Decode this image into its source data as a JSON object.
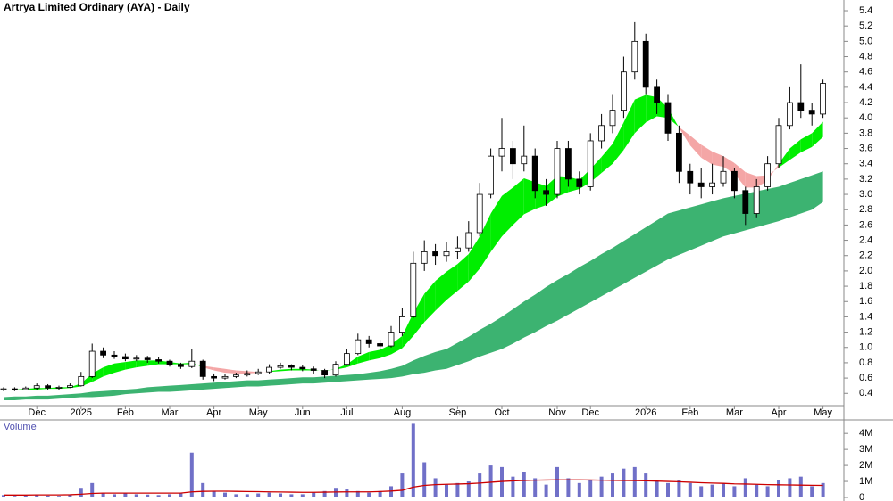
{
  "chart_data": {
    "type": "candlestick",
    "title": "Artrya Limited Ordinary (AYA) - Daily",
    "categories": [
      null,
      null,
      null,
      "Dec",
      null,
      null,
      null,
      "2025",
      null,
      null,
      null,
      "Feb",
      null,
      null,
      null,
      "Mar",
      null,
      null,
      null,
      "Apr",
      null,
      null,
      null,
      "May",
      null,
      null,
      null,
      "Jun",
      null,
      null,
      null,
      "Jul",
      null,
      null,
      null,
      null,
      "Aug",
      null,
      null,
      null,
      null,
      "Sep",
      null,
      null,
      null,
      "Oct",
      null,
      null,
      null,
      null,
      "Nov",
      null,
      null,
      "Dec",
      null,
      null,
      null,
      null,
      "2026",
      null,
      null,
      null,
      "Feb",
      null,
      null,
      null,
      "Mar",
      null,
      null,
      null,
      "Apr",
      null,
      null,
      null,
      "May"
    ],
    "open": [
      0.45,
      0.46,
      0.45,
      0.47,
      0.5,
      0.47,
      0.48,
      0.5,
      0.62,
      0.95,
      0.9,
      0.88,
      0.85,
      0.86,
      0.84,
      0.82,
      0.78,
      0.75,
      0.82,
      0.62,
      0.6,
      0.62,
      0.64,
      0.66,
      0.68,
      0.74,
      0.76,
      0.74,
      0.72,
      0.7,
      0.64,
      0.78,
      0.92,
      1.1,
      1.05,
      1.02,
      1.2,
      1.4,
      2.1,
      2.25,
      2.2,
      2.25,
      2.3,
      2.5,
      3.0,
      3.5,
      3.6,
      3.4,
      3.5,
      3.05,
      3.0,
      3.6,
      3.2,
      3.1,
      3.7,
      3.9,
      4.1,
      4.6,
      5.0,
      4.4,
      4.2,
      3.8,
      3.3,
      3.15,
      3.1,
      3.15,
      3.3,
      3.05,
      2.75,
      3.1,
      3.4,
      3.9,
      4.2,
      4.1,
      4.05
    ],
    "high": [
      0.48,
      0.48,
      0.49,
      0.53,
      0.52,
      0.5,
      0.53,
      0.68,
      1.05,
      1.0,
      0.95,
      0.92,
      0.9,
      0.89,
      0.87,
      0.84,
      0.8,
      0.98,
      0.84,
      0.66,
      0.65,
      0.67,
      0.7,
      0.72,
      0.78,
      0.8,
      0.78,
      0.77,
      0.75,
      0.72,
      0.82,
      0.98,
      1.18,
      1.15,
      1.1,
      1.28,
      1.52,
      2.25,
      2.4,
      2.35,
      2.38,
      2.45,
      2.65,
      3.15,
      3.6,
      4.0,
      3.7,
      3.9,
      3.6,
      3.2,
      3.7,
      3.7,
      3.3,
      3.8,
      4.05,
      4.3,
      4.8,
      5.25,
      5.1,
      4.5,
      4.3,
      3.9,
      3.4,
      3.35,
      3.4,
      3.5,
      3.35,
      3.1,
      3.2,
      3.5,
      4.0,
      4.4,
      4.7,
      4.2,
      4.5
    ],
    "low": [
      0.43,
      0.43,
      0.44,
      0.45,
      0.45,
      0.45,
      0.47,
      0.49,
      0.6,
      0.86,
      0.85,
      0.82,
      0.82,
      0.8,
      0.79,
      0.75,
      0.72,
      0.73,
      0.58,
      0.56,
      0.58,
      0.6,
      0.62,
      0.64,
      0.66,
      0.72,
      0.7,
      0.69,
      0.66,
      0.6,
      0.62,
      0.76,
      0.9,
      1.0,
      0.98,
      1.0,
      1.15,
      1.38,
      2.0,
      2.08,
      2.12,
      2.15,
      2.25,
      2.45,
      2.95,
      3.3,
      3.2,
      3.3,
      2.95,
      2.85,
      2.95,
      3.1,
      3.0,
      3.05,
      3.6,
      3.8,
      4.0,
      4.5,
      4.3,
      4.05,
      3.7,
      3.15,
      3.0,
      2.95,
      3.0,
      3.1,
      2.95,
      2.6,
      2.7,
      3.05,
      3.35,
      3.85,
      4.0,
      3.9,
      4.0
    ],
    "close": [
      0.46,
      0.45,
      0.47,
      0.5,
      0.47,
      0.48,
      0.5,
      0.62,
      0.95,
      0.9,
      0.88,
      0.85,
      0.86,
      0.84,
      0.82,
      0.78,
      0.75,
      0.82,
      0.62,
      0.6,
      0.62,
      0.64,
      0.66,
      0.68,
      0.74,
      0.76,
      0.74,
      0.72,
      0.7,
      0.64,
      0.78,
      0.92,
      1.1,
      1.05,
      1.02,
      1.2,
      1.4,
      2.1,
      2.25,
      2.2,
      2.25,
      2.3,
      2.5,
      3.0,
      3.5,
      3.6,
      3.4,
      3.5,
      3.05,
      3.0,
      3.6,
      3.2,
      3.1,
      3.7,
      3.9,
      4.1,
      4.6,
      5.0,
      4.4,
      4.2,
      3.8,
      3.3,
      3.15,
      3.1,
      3.15,
      3.3,
      3.05,
      2.75,
      3.1,
      3.4,
      3.9,
      4.2,
      4.1,
      4.05,
      4.45
    ],
    "up_color": "#ffffff",
    "down_color": "#000000",
    "short_band": {
      "fast": [
        0.45,
        0.45,
        0.46,
        0.47,
        0.47,
        0.48,
        0.48,
        0.53,
        0.66,
        0.74,
        0.79,
        0.81,
        0.83,
        0.83,
        0.83,
        0.81,
        0.79,
        0.8,
        0.74,
        0.7,
        0.67,
        0.66,
        0.66,
        0.67,
        0.69,
        0.71,
        0.72,
        0.72,
        0.71,
        0.69,
        0.72,
        0.78,
        0.88,
        0.94,
        0.97,
        1.04,
        1.15,
        1.45,
        1.7,
        1.87,
        1.99,
        2.09,
        2.22,
        2.45,
        2.75,
        2.98,
        3.09,
        3.21,
        3.16,
        3.11,
        3.24,
        3.23,
        3.19,
        3.33,
        3.49,
        3.66,
        3.94,
        4.24,
        4.3,
        4.27,
        4.13,
        3.87,
        3.64,
        3.48,
        3.39,
        3.36,
        3.27,
        3.09,
        3.09,
        3.18,
        3.4,
        3.6,
        3.72,
        3.8,
        3.95
      ],
      "slow": [
        0.44,
        0.44,
        0.45,
        0.45,
        0.46,
        0.46,
        0.47,
        0.49,
        0.55,
        0.62,
        0.67,
        0.71,
        0.74,
        0.76,
        0.78,
        0.78,
        0.78,
        0.78,
        0.76,
        0.74,
        0.72,
        0.7,
        0.69,
        0.68,
        0.68,
        0.69,
        0.7,
        0.7,
        0.7,
        0.7,
        0.71,
        0.74,
        0.79,
        0.83,
        0.86,
        0.91,
        0.99,
        1.15,
        1.33,
        1.48,
        1.62,
        1.74,
        1.86,
        2.03,
        2.25,
        2.45,
        2.6,
        2.74,
        2.81,
        2.86,
        2.97,
        3.03,
        3.07,
        3.16,
        3.28,
        3.4,
        3.58,
        3.8,
        3.94,
        4.02,
        4.0,
        3.88,
        3.77,
        3.65,
        3.56,
        3.5,
        3.41,
        3.29,
        3.24,
        3.25,
        3.35,
        3.45,
        3.55,
        3.62,
        3.75
      ],
      "up_color": "#00ee00",
      "down_color": "#f4a6a6"
    },
    "long_band": {
      "upper": [
        0.35,
        0.36,
        0.36,
        0.37,
        0.37,
        0.38,
        0.39,
        0.4,
        0.42,
        0.43,
        0.44,
        0.45,
        0.46,
        0.48,
        0.49,
        0.5,
        0.51,
        0.52,
        0.53,
        0.54,
        0.55,
        0.56,
        0.57,
        0.57,
        0.58,
        0.59,
        0.6,
        0.61,
        0.61,
        0.62,
        0.63,
        0.64,
        0.65,
        0.67,
        0.69,
        0.72,
        0.76,
        0.83,
        0.89,
        0.94,
        0.98,
        1.06,
        1.14,
        1.23,
        1.31,
        1.4,
        1.5,
        1.6,
        1.69,
        1.79,
        1.88,
        1.96,
        2.05,
        2.13,
        2.22,
        2.3,
        2.39,
        2.48,
        2.57,
        2.66,
        2.75,
        2.79,
        2.83,
        2.87,
        2.91,
        2.95,
        2.98,
        3.01,
        3.04,
        3.07,
        3.1,
        3.15,
        3.2,
        3.25,
        3.3
      ],
      "lower": [
        0.31,
        0.31,
        0.32,
        0.32,
        0.32,
        0.33,
        0.34,
        0.35,
        0.35,
        0.36,
        0.37,
        0.39,
        0.4,
        0.41,
        0.42,
        0.42,
        0.43,
        0.44,
        0.45,
        0.46,
        0.47,
        0.48,
        0.49,
        0.49,
        0.5,
        0.51,
        0.52,
        0.53,
        0.53,
        0.54,
        0.55,
        0.56,
        0.57,
        0.58,
        0.59,
        0.6,
        0.62,
        0.65,
        0.67,
        0.7,
        0.72,
        0.77,
        0.82,
        0.88,
        0.93,
        0.98,
        1.05,
        1.13,
        1.2,
        1.28,
        1.35,
        1.43,
        1.51,
        1.59,
        1.67,
        1.75,
        1.83,
        1.91,
        1.99,
        2.07,
        2.15,
        2.21,
        2.27,
        2.33,
        2.39,
        2.45,
        2.49,
        2.53,
        2.57,
        2.61,
        2.65,
        2.7,
        2.75,
        2.8,
        2.9
      ],
      "color": "#3cb371"
    },
    "ylim": [
      0.24,
      5.54
    ],
    "yticks": [
      0.4,
      0.6,
      0.8,
      {
        "value": 1,
        "label": "1.0"
      },
      1.2,
      1.4,
      1.6,
      1.8,
      {
        "value": 2,
        "label": "2.0"
      },
      2.2,
      2.4,
      2.6,
      2.8,
      {
        "value": 3,
        "label": "3.0"
      },
      3.2,
      3.4,
      3.6,
      3.8,
      {
        "value": 4,
        "label": "4.0"
      },
      4.2,
      4.4,
      4.6,
      4.8,
      {
        "value": 5,
        "label": "5.0"
      },
      5.2,
      5.4
    ],
    "volume": {
      "title": "Volume",
      "color": "#7070c8",
      "values": [
        150000,
        100000,
        120000,
        180000,
        120000,
        100000,
        150000,
        600000,
        900000,
        300000,
        200000,
        250000,
        200000,
        180000,
        150000,
        200000,
        250000,
        2800000,
        900000,
        400000,
        300000,
        200000,
        200000,
        250000,
        300000,
        250000,
        200000,
        200000,
        300000,
        400000,
        600000,
        500000,
        400000,
        300000,
        400000,
        700000,
        1500000,
        4600000,
        2200000,
        1200000,
        800000,
        900000,
        1000000,
        1500000,
        2000000,
        1900000,
        1300000,
        1600000,
        1200000,
        800000,
        1900000,
        1200000,
        900000,
        1100000,
        1300000,
        1500000,
        1800000,
        1900000,
        1500000,
        1000000,
        900000,
        1100000,
        900000,
        700000,
        800000,
        900000,
        700000,
        1200000,
        800000,
        700000,
        1100000,
        1200000,
        1300000,
        700000,
        900000
      ],
      "ma": {
        "color": "#cc0000",
        "values": [
          150000,
          150000,
          150000,
          160000,
          160000,
          160000,
          170000,
          200000,
          250000,
          270000,
          270000,
          270000,
          270000,
          270000,
          270000,
          270000,
          270000,
          350000,
          380000,
          390000,
          390000,
          380000,
          370000,
          360000,
          350000,
          340000,
          330000,
          320000,
          320000,
          330000,
          340000,
          350000,
          350000,
          350000,
          370000,
          400000,
          450000,
          650000,
          750000,
          800000,
          820000,
          840000,
          860000,
          900000,
          950000,
          1000000,
          1030000,
          1060000,
          1080000,
          1090000,
          1100000,
          1100000,
          1100000,
          1090000,
          1080000,
          1070000,
          1060000,
          1050000,
          1040000,
          1020000,
          1000000,
          980000,
          950000,
          920000,
          900000,
          880000,
          850000,
          840000,
          820000,
          800000,
          790000,
          780000,
          770000,
          760000,
          750000
        ]
      },
      "ylim": [
        0,
        4400000
      ],
      "yticks": [
        0,
        {
          "value": 1000000,
          "label": "1M"
        },
        {
          "value": 2000000,
          "label": "2M"
        },
        {
          "value": 3000000,
          "label": "3M"
        },
        {
          "value": 4000000,
          "label": "4M"
        }
      ]
    }
  }
}
